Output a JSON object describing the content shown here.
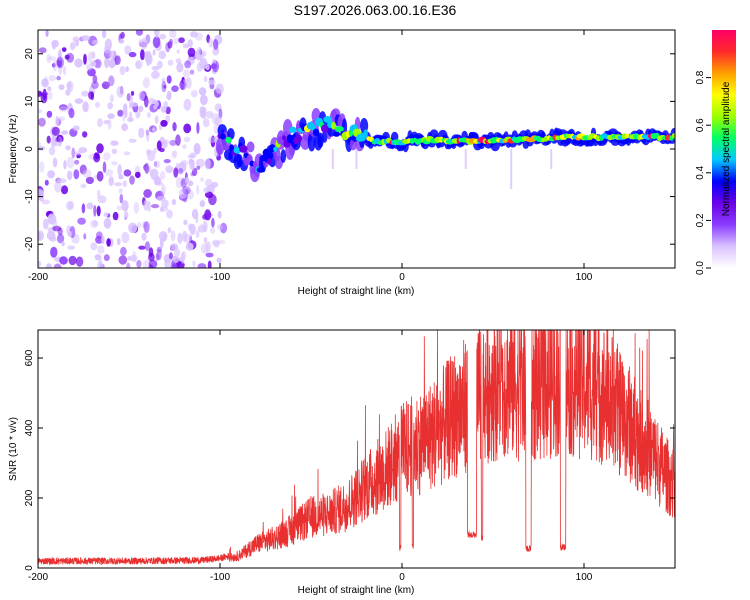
{
  "title": "S197.2026.063.00.16.E36",
  "colors": {
    "axis": "#000000",
    "snr_line": "#e83030",
    "cmap": [
      "#ffffff",
      "#d9c2ff",
      "#8c3dff",
      "#6a00e8",
      "#0000ff",
      "#00c8ff",
      "#00ff66",
      "#9cff00",
      "#ffff00",
      "#ffa000",
      "#ff2a2a",
      "#ff0066"
    ]
  },
  "chart_data": [
    {
      "type": "heatmap",
      "name": "spectrogram",
      "xlabel": "Height of straight line (km)",
      "ylabel": "Frequency (Hz)",
      "xlim": [
        -200,
        150
      ],
      "ylim": [
        -25,
        25
      ],
      "xticks": [
        -200,
        -100,
        0,
        100
      ],
      "xtick_labels": [
        "-200",
        "-100",
        "0",
        "100"
      ],
      "yticks": [
        -20,
        -10,
        0,
        10,
        20
      ],
      "ytick_labels": [
        "-20",
        "-10",
        "0",
        "10",
        "20"
      ],
      "colorbar": {
        "label": "Normalized spectral amplitude",
        "range": [
          0,
          1
        ],
        "ticks": [
          0.0,
          0.2,
          0.4,
          0.6,
          0.8
        ],
        "tick_labels": [
          "0.0",
          "0.2",
          "0.4",
          "0.6",
          "0.8"
        ]
      },
      "noise_region": {
        "x": [
          -200,
          -98
        ],
        "freq": [
          -25,
          25
        ],
        "amplitude": 0.15
      },
      "ridge": [
        {
          "x": -100,
          "freq": 2.0,
          "amp": 0.25
        },
        {
          "x": -90,
          "freq": 0.0,
          "amp": 0.3
        },
        {
          "x": -85,
          "freq": -2.0,
          "amp": 0.35
        },
        {
          "x": -78,
          "freq": -3.0,
          "amp": 0.3
        },
        {
          "x": -70,
          "freq": -1.0,
          "amp": 0.35
        },
        {
          "x": -60,
          "freq": 3.0,
          "amp": 0.4
        },
        {
          "x": -50,
          "freq": 4.0,
          "amp": 0.35
        },
        {
          "x": -40,
          "freq": 5.0,
          "amp": 0.35
        },
        {
          "x": -30,
          "freq": 4.0,
          "amp": 0.55
        },
        {
          "x": -20,
          "freq": 2.0,
          "amp": 0.6
        },
        {
          "x": -10,
          "freq": 1.5,
          "amp": 0.55
        },
        {
          "x": 0,
          "freq": 1.5,
          "amp": 0.55
        },
        {
          "x": 10,
          "freq": 1.8,
          "amp": 0.6
        },
        {
          "x": 30,
          "freq": 1.8,
          "amp": 0.65
        },
        {
          "x": 50,
          "freq": 1.8,
          "amp": 0.6
        },
        {
          "x": 70,
          "freq": 2.0,
          "amp": 0.65
        },
        {
          "x": 90,
          "freq": 2.5,
          "amp": 0.65
        },
        {
          "x": 110,
          "freq": 2.5,
          "amp": 0.6
        },
        {
          "x": 130,
          "freq": 2.5,
          "amp": 0.6
        },
        {
          "x": 150,
          "freq": 2.5,
          "amp": 0.55
        }
      ]
    },
    {
      "type": "line",
      "name": "snr",
      "xlabel": "Height of straight line (km)",
      "ylabel": "SNR (10 * v/v)",
      "xlim": [
        -200,
        150
      ],
      "ylim": [
        0,
        680
      ],
      "xticks": [
        -200,
        -100,
        0,
        100
      ],
      "xtick_labels": [
        "-200",
        "-100",
        "0",
        "100"
      ],
      "yticks": [
        0,
        200,
        400,
        600
      ],
      "ytick_labels": [
        "0",
        "200",
        "400",
        "600"
      ],
      "envelope": {
        "x": [
          -200,
          -150,
          -110,
          -100,
          -90,
          -80,
          -70,
          -60,
          -50,
          -40,
          -30,
          -20,
          -10,
          0,
          10,
          20,
          30,
          40,
          50,
          60,
          70,
          80,
          90,
          100,
          110,
          120,
          130,
          140,
          150
        ],
        "y": [
          20,
          20,
          22,
          28,
          40,
          80,
          100,
          130,
          170,
          180,
          210,
          270,
          320,
          390,
          420,
          460,
          520,
          570,
          610,
          620,
          600,
          620,
          640,
          620,
          590,
          520,
          440,
          360,
          270
        ]
      },
      "dropouts": [
        {
          "x": [
            36,
            41
          ],
          "y": 95
        },
        {
          "x": 44,
          "y": 85
        },
        {
          "x": [
            68,
            71
          ],
          "y": 55
        },
        {
          "x": [
            87,
            90
          ],
          "y": 60
        },
        {
          "x": -1,
          "y": 60
        },
        {
          "x": 6,
          "y": 60
        }
      ]
    }
  ]
}
